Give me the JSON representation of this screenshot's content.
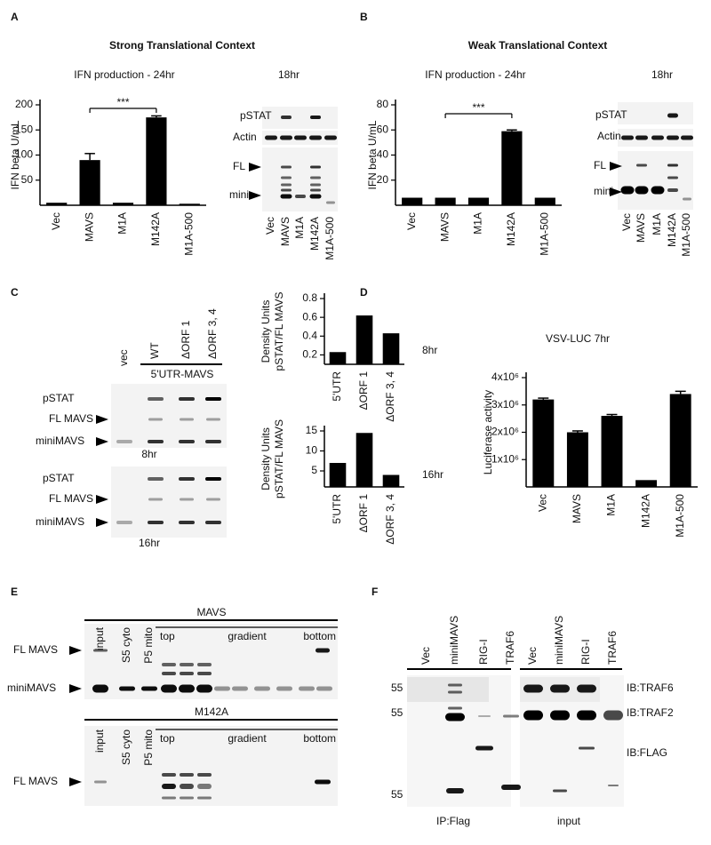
{
  "chart_data": [
    {
      "type": "bar",
      "title": "Strong Translational Context",
      "subtitle": "IFN production - 24hr",
      "ylabel": "IFN beta U/mL",
      "categories": [
        "Vec",
        "MAVS",
        "M1A",
        "M142A",
        "M1A-500"
      ],
      "values": [
        5,
        90,
        5,
        175,
        3
      ],
      "errors": [
        null,
        13,
        null,
        3,
        null
      ],
      "color": "#000000",
      "ylim": [
        0,
        200
      ],
      "yticks": [
        50,
        100,
        150,
        200
      ],
      "annotation": "***"
    },
    {
      "type": "bar",
      "title": "Weak Translational Context",
      "subtitle": "IFN production - 24hr",
      "ylabel": "IFN beta U/mL",
      "categories": [
        "Vec",
        "MAVS",
        "M1A",
        "M142A",
        "M1A-500"
      ],
      "values": [
        6,
        6,
        6,
        59,
        6
      ],
      "errors": [
        null,
        null,
        null,
        1,
        null
      ],
      "color": "#000000",
      "ylim": [
        0,
        80
      ],
      "yticks": [
        20,
        40,
        60,
        80
      ],
      "annotation": "***"
    },
    {
      "type": "bar",
      "ylabel": [
        "Density Units",
        "pSTAT/FL MAVS"
      ],
      "categories": [
        "5'UTR",
        "ΔORF 1",
        "ΔORF 3, 4"
      ],
      "values": [
        0.23,
        0.62,
        0.43
      ],
      "color": "#000000",
      "ylim": [
        0.1,
        0.8
      ],
      "yticks": [
        0.2,
        0.4,
        0.6,
        0.8
      ],
      "annotation": "8hr"
    },
    {
      "type": "bar",
      "ylabel": [
        "Density Units",
        "pSTAT/FL MAVS"
      ],
      "categories": [
        "5'UTR",
        "ΔORF 1",
        "ΔORF 3, 4"
      ],
      "values": [
        7,
        14.5,
        4
      ],
      "color": "#000000",
      "ylim": [
        1,
        15
      ],
      "yticks": [
        5,
        10,
        15
      ],
      "annotation": "16hr"
    },
    {
      "type": "bar",
      "title": "VSV-LUC 7hr",
      "ylabel": "Luciferase activity",
      "categories": [
        "Vec",
        "MAVS",
        "M1A",
        "M142A",
        "M1A-500"
      ],
      "values": [
        3200000,
        2000000,
        2600000,
        250000,
        3400000
      ],
      "errors": [
        50000,
        50000,
        50000,
        null,
        100000
      ],
      "color": "#000000",
      "ylim": [
        0,
        4000000
      ],
      "yticks": [
        {
          "value": 1000000,
          "label": "1x10⁶"
        },
        {
          "value": 2000000,
          "label": "2x10⁶"
        },
        {
          "value": 3000000,
          "label": "3x10⁶"
        },
        {
          "value": 4000000,
          "label": "4x10⁶"
        }
      ]
    }
  ],
  "panel_labels": [
    "A",
    "B",
    "C",
    "D",
    "E",
    "F"
  ],
  "blot_a": {
    "time": "18hr",
    "rows": [
      "pSTAT",
      "Actin",
      "FL",
      "mini"
    ],
    "lanes": [
      "Vec",
      "MAVS",
      "M1A",
      "M142A",
      "M1A-500"
    ]
  },
  "blot_b": {
    "time": "18hr",
    "rows": [
      "pSTAT",
      "Actin",
      "FL",
      "mini"
    ],
    "lanes": [
      "Vec",
      "MAVS",
      "M1A",
      "M142A",
      "M1A-500"
    ]
  },
  "blot_c": {
    "lanes": [
      "vec",
      "WT",
      "ΔORF 1",
      "ΔORF 3, 4"
    ],
    "construct": "5'UTR-MAVS",
    "rows_8hr": [
      "pSTAT",
      "FL MAVS",
      "miniMAVS"
    ],
    "time_8hr": "8hr",
    "rows_16hr": [
      "pSTAT",
      "FL MAVS",
      "miniMAVS"
    ],
    "time_16hr": "16hr"
  },
  "blot_e": {
    "mavs": {
      "title": "MAVS",
      "lanes": [
        "input",
        "S5 cyto",
        "P5 mito"
      ],
      "gradient": [
        "top",
        "gradient",
        "bottom"
      ],
      "rows": [
        "FL MAVS",
        "miniMAVS"
      ]
    },
    "m142a": {
      "title": "M142A",
      "lanes": [
        "input",
        "S5 cyto",
        "P5 mito"
      ],
      "gradient": [
        "top",
        "gradient",
        "bottom"
      ],
      "rows": [
        "FL MAVS"
      ]
    }
  },
  "blot_f": {
    "lanes": [
      "Vec",
      "miniMAVS",
      "RIG-I",
      "TRAF6",
      "Vec",
      "miniMAVS",
      "RIG-I",
      "TRAF6"
    ],
    "markers": [
      "55",
      "55",
      "55"
    ],
    "probes": [
      "IB:TRAF6",
      "IB:TRAF2",
      "IB:FLAG"
    ],
    "groups": [
      "IP:Flag",
      "input"
    ]
  }
}
